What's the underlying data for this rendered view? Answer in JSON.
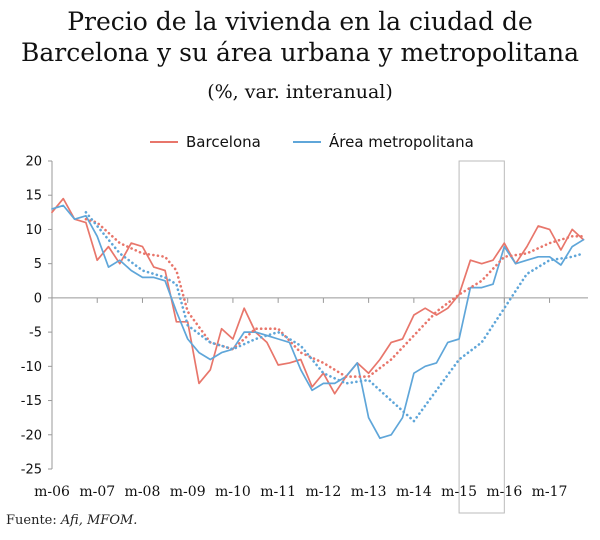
{
  "title_line1": "Precio de la vivienda en la ciudad de",
  "title_line2": "Barcelona y su área urbana y metropolitana",
  "subtitle": "(%, var. interanual)",
  "source_label": "Fuente: ",
  "source_value": "Afi, MFOM.",
  "chart_data": {
    "type": "line",
    "ylim": [
      -25,
      20
    ],
    "yticks": [
      "20",
      "15",
      "10",
      "5",
      "0",
      "-5",
      "-10",
      "-15",
      "-20",
      "-25"
    ],
    "xtick_labels": [
      "m-06",
      "m-07",
      "m-08",
      "m-09",
      "m-10",
      "m-11",
      "m-12",
      "m-13",
      "m-14",
      "m-15",
      "m-16",
      "m-17"
    ],
    "x_start_year": 2006,
    "x_end_year": 2017.85,
    "highlight_range": [
      2015,
      2016
    ],
    "grid": false,
    "legend_position": "top-center",
    "colors": {
      "barcelona": "#e8766b",
      "metro": "#5fa6d9",
      "axis": "#999999",
      "highlight": "#bbbbbb"
    },
    "series": [
      {
        "name": "Barcelona",
        "style": "solid",
        "color": "#e8766b",
        "x": [
          2006.0,
          2006.25,
          2006.5,
          2006.75,
          2007.0,
          2007.25,
          2007.5,
          2007.75,
          2008.0,
          2008.25,
          2008.5,
          2008.75,
          2009.0,
          2009.25,
          2009.5,
          2009.75,
          2010.0,
          2010.25,
          2010.5,
          2010.75,
          2011.0,
          2011.25,
          2011.5,
          2011.75,
          2012.0,
          2012.25,
          2012.5,
          2012.75,
          2013.0,
          2013.25,
          2013.5,
          2013.75,
          2014.0,
          2014.25,
          2014.5,
          2014.75,
          2015.0,
          2015.25,
          2015.5,
          2015.75,
          2016.0,
          2016.25,
          2016.5,
          2016.75,
          2017.0,
          2017.25,
          2017.5,
          2017.75
        ],
        "y": [
          12.5,
          14.5,
          11.5,
          11.0,
          5.5,
          7.5,
          5.0,
          8.0,
          7.5,
          4.5,
          4.0,
          -3.5,
          -3.5,
          -12.5,
          -10.5,
          -4.5,
          -6.0,
          -1.5,
          -5.0,
          -6.5,
          -9.8,
          -9.5,
          -9.0,
          -13.0,
          -11.0,
          -14.0,
          -11.5,
          -9.5,
          -11.0,
          -9.0,
          -6.5,
          -6.0,
          -2.5,
          -1.5,
          -2.5,
          -1.5,
          0.5,
          5.5,
          5.0,
          5.5,
          8.0,
          5.0,
          7.5,
          10.5,
          10.0,
          7.0,
          10.0,
          8.5
        ]
      },
      {
        "name": "Área metropolitana",
        "style": "solid",
        "color": "#5fa6d9",
        "x": [
          2006.0,
          2006.25,
          2006.5,
          2006.75,
          2007.0,
          2007.25,
          2007.5,
          2007.75,
          2008.0,
          2008.25,
          2008.5,
          2008.75,
          2009.0,
          2009.25,
          2009.5,
          2009.75,
          2010.0,
          2010.25,
          2010.5,
          2010.75,
          2011.0,
          2011.25,
          2011.5,
          2011.75,
          2012.0,
          2012.25,
          2012.5,
          2012.75,
          2013.0,
          2013.25,
          2013.5,
          2013.75,
          2014.0,
          2014.25,
          2014.5,
          2014.75,
          2015.0,
          2015.25,
          2015.5,
          2015.75,
          2016.0,
          2016.25,
          2016.5,
          2016.75,
          2017.0,
          2017.25,
          2017.5,
          2017.75
        ],
        "y": [
          13.0,
          13.5,
          11.5,
          12.0,
          9.0,
          4.5,
          5.5,
          4.0,
          3.0,
          3.0,
          2.5,
          -2.0,
          -6.0,
          -8.0,
          -9.0,
          -8.0,
          -7.5,
          -5.0,
          -5.0,
          -5.5,
          -6.0,
          -6.5,
          -10.5,
          -13.5,
          -12.5,
          -12.5,
          -11.5,
          -9.5,
          -17.5,
          -20.5,
          -20.0,
          -17.5,
          -11.0,
          -10.0,
          -9.5,
          -6.5,
          -6.0,
          1.5,
          1.5,
          2.0,
          7.5,
          5.0,
          5.5,
          6.0,
          6.0,
          4.8,
          7.5,
          8.5
        ]
      },
      {
        "name": "",
        "style": "dotted",
        "color": "#e8766b",
        "x": [
          2006.75,
          2007.0,
          2007.5,
          2008.0,
          2008.5,
          2008.75,
          2009.0,
          2009.5,
          2010.0,
          2010.5,
          2011.0,
          2011.5,
          2012.0,
          2012.5,
          2013.0,
          2013.5,
          2014.0,
          2014.5,
          2015.0,
          2015.5,
          2016.0,
          2016.5,
          2017.0,
          2017.5,
          2017.75
        ],
        "y": [
          11.5,
          11.0,
          8.0,
          6.5,
          6.0,
          4.0,
          -2.0,
          -6.5,
          -7.5,
          -4.5,
          -4.5,
          -8.0,
          -9.5,
          -11.5,
          -11.5,
          -9.0,
          -5.5,
          -2.0,
          0.5,
          2.5,
          6.0,
          6.5,
          8.0,
          9.0,
          9.0
        ]
      },
      {
        "name": "",
        "style": "dotted",
        "color": "#5fa6d9",
        "x": [
          2006.75,
          2007.0,
          2007.5,
          2008.0,
          2008.5,
          2008.75,
          2009.0,
          2009.5,
          2010.0,
          2010.5,
          2011.0,
          2011.5,
          2012.0,
          2012.5,
          2013.0,
          2013.5,
          2014.0,
          2014.5,
          2015.0,
          2015.5,
          2016.0,
          2016.5,
          2017.0,
          2017.5,
          2017.75
        ],
        "y": [
          12.5,
          10.5,
          6.5,
          4.0,
          3.0,
          2.0,
          -4.0,
          -6.5,
          -7.5,
          -6.0,
          -5.0,
          -7.0,
          -11.0,
          -12.5,
          -12.0,
          -15.0,
          -18.0,
          -13.5,
          -9.0,
          -6.5,
          -1.5,
          3.5,
          5.5,
          6.0,
          6.5
        ]
      }
    ]
  }
}
